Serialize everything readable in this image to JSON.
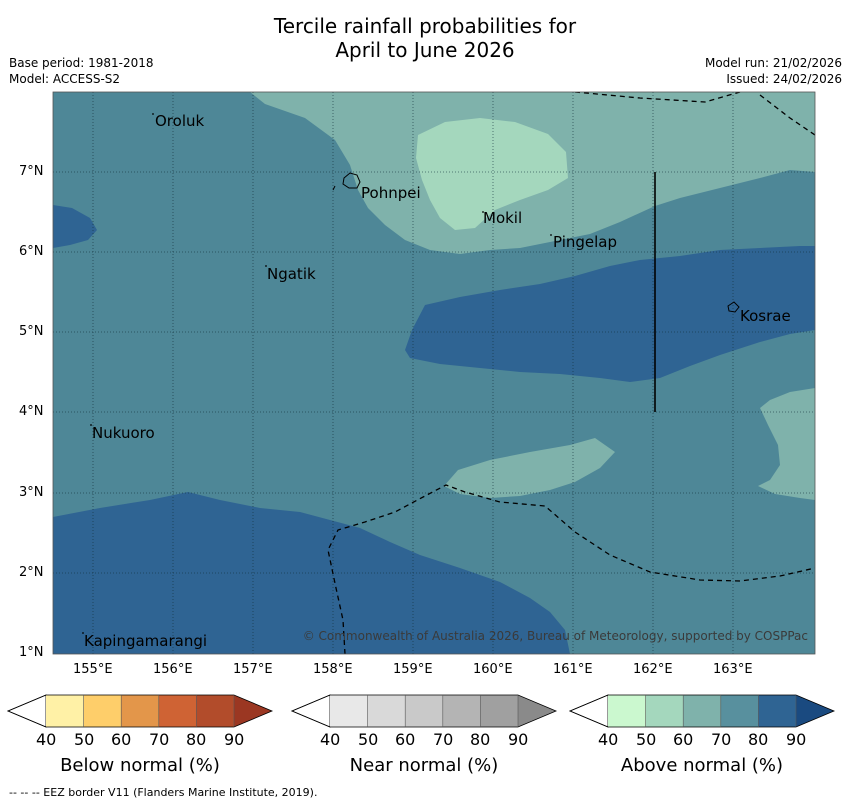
{
  "title": {
    "line1": "Tercile rainfall probabilities for",
    "line2": "April to June 2026"
  },
  "meta": {
    "base_period": "Base period: 1981-2018",
    "model": "Model: ACCESS-S2",
    "model_run": "Model run: 21/02/2026",
    "issued": "Issued: 24/02/2026"
  },
  "map": {
    "lat_ticks": [
      "7°N",
      "6°N",
      "5°N",
      "4°N",
      "3°N",
      "2°N",
      "1°N"
    ],
    "lon_ticks": [
      "155°E",
      "156°E",
      "157°E",
      "158°E",
      "159°E",
      "160°E",
      "161°E",
      "162°E",
      "163°E"
    ],
    "places": {
      "oroluk": "Oroluk",
      "pohnpei": "Pohnpei",
      "mokil": "Mokil",
      "pingelap": "Pingelap",
      "ngatik": "Ngatik",
      "kosrae": "Kosrae",
      "nukuoro": "Nukuoro",
      "kapingamarangi": "Kapingamarangi"
    },
    "copyright": "© Commonwealth of Australia 2026, Bureau of Meteorology, supported by COSPPac",
    "colors": {
      "c60": "#7fb2ab",
      "c50": "#a4d7bd",
      "c70": "#4e8797",
      "c80": "#2f6493"
    }
  },
  "legends": {
    "below": {
      "caption": "Below normal (%)",
      "ticks": [
        "40",
        "50",
        "60",
        "70",
        "80",
        "90"
      ],
      "colors": [
        "#fff1a6",
        "#fece6a",
        "#e3964a",
        "#cf6334",
        "#b24c2b",
        "#9b3722"
      ]
    },
    "near": {
      "caption": "Near normal (%)",
      "ticks": [
        "40",
        "50",
        "60",
        "70",
        "80",
        "90"
      ],
      "colors": [
        "#e8e8e8",
        "#d9d9d9",
        "#c9c9c9",
        "#b4b4b4",
        "#a0a0a0",
        "#8a8a8a"
      ]
    },
    "above": {
      "caption": "Above normal (%)",
      "ticks": [
        "40",
        "50",
        "60",
        "70",
        "80",
        "90"
      ],
      "colors": [
        "#cbf8cf",
        "#a4d7bd",
        "#7fb2ab",
        "#58909e",
        "#2f6493",
        "#1a4a80"
      ]
    }
  },
  "footnote": "--  --  -- EEZ border V11 (Flanders Marine Institute, 2019)."
}
